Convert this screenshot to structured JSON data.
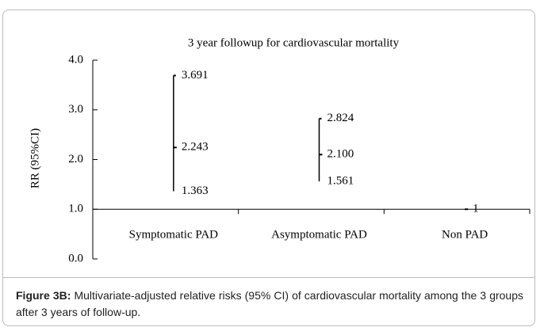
{
  "chart_data": {
    "type": "range",
    "title": "3 year followup for cardiovascular mortality",
    "ylabel": "RR (95%CI)",
    "categories": [
      "Symptomatic PAD",
      "Asymptomatic PAD",
      "Non PAD"
    ],
    "values": [
      2.243,
      2.1,
      1
    ],
    "value_labels": [
      "2.243",
      "2.100",
      "1"
    ],
    "upper": [
      3.691,
      2.824,
      null
    ],
    "lower": [
      1.363,
      1.561,
      null
    ],
    "color": "#000000",
    "ylim": [
      0,
      4
    ],
    "yticks": [
      {
        "value": 0,
        "label": "0.0"
      },
      {
        "value": 1,
        "label": "1.0"
      },
      {
        "value": 2,
        "label": "2.0"
      },
      {
        "value": 3,
        "label": "3.0"
      },
      {
        "value": 4,
        "label": "4.0"
      }
    ],
    "xaxis_cross": 1
  },
  "caption": {
    "label": "Figure 3B:",
    "text": "Multivariate-adjusted relative risks (95% CI) of cardiovascular mortality among the 3 groups after 3 years of follow-up."
  }
}
